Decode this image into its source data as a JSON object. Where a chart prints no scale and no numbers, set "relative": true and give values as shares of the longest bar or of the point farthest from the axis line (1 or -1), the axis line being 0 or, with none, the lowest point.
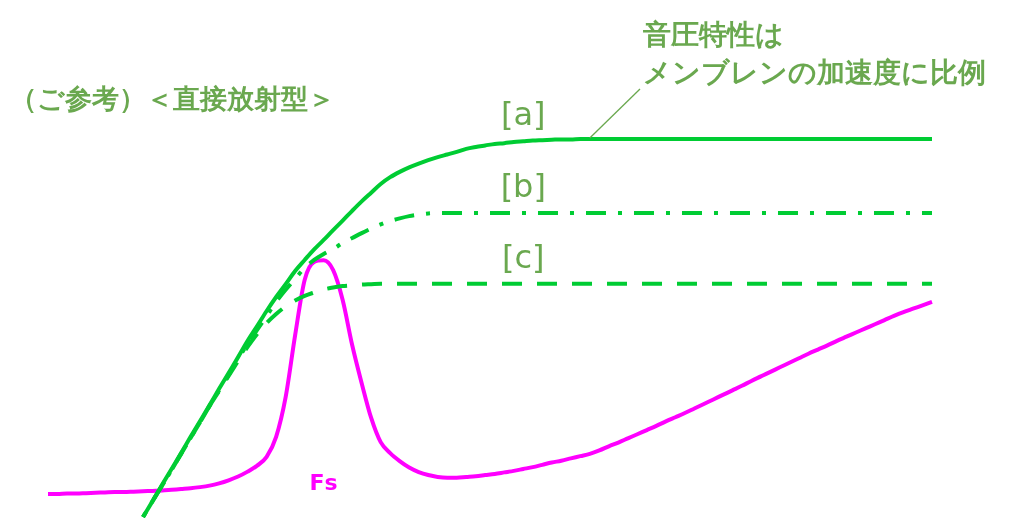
{
  "chart_data": {
    "type": "line",
    "title": "（ご参考）＜直接放射型＞",
    "annotations": [
      "音圧特性は",
      "メンブレンの加速度に比例"
    ],
    "relative": true,
    "tick_labels": false,
    "categories": [
      null,
      null,
      null,
      null,
      null,
      null,
      null,
      null,
      null,
      null,
      null,
      null,
      null,
      null,
      null,
      null,
      null,
      null,
      null,
      null,
      null,
      null,
      null,
      null,
      null,
      null,
      null,
      null,
      null,
      null,
      null,
      null,
      null,
      null,
      null,
      null,
      null,
      null,
      null,
      null,
      null,
      null,
      null,
      null,
      null,
      null,
      null,
      null,
      null,
      null,
      null,
      null,
      null,
      null,
      null,
      null,
      null,
      null,
      null,
      null,
      null,
      null,
      null,
      null,
      null,
      null,
      null,
      null,
      null,
      null,
      null,
      null,
      null,
      null,
      null,
      null,
      null,
      null,
      null,
      null,
      null,
      null,
      null,
      null,
      null,
      null,
      null,
      null,
      null,
      null,
      null,
      null,
      null,
      null
    ],
    "series": [
      {
        "name": "[a]",
        "color": "#00cc33",
        "line_style": "solid",
        "values": [
          null,
          null,
          null,
          null,
          null,
          null,
          null,
          null,
          null,
          null,
          0,
          0.042,
          0.085,
          0.127,
          0.169,
          0.212,
          0.254,
          0.296,
          0.339,
          0.381,
          0.423,
          0.466,
          0.505,
          0.545,
          0.582,
          0.616,
          0.651,
          0.68,
          0.708,
          0.733,
          0.759,
          0.784,
          0.81,
          0.835,
          0.858,
          0.881,
          0.899,
          0.913,
          0.925,
          0.935,
          0.944,
          0.952,
          0.959,
          0.966,
          0.974,
          0.979,
          0.983,
          0.987,
          0.989,
          0.992,
          0.994,
          0.996,
          0.997,
          0.998,
          0.999,
          0.999,
          1,
          1,
          1,
          1,
          1,
          1,
          1,
          1,
          1,
          1,
          1,
          1,
          1,
          1,
          1,
          1,
          1,
          1,
          1,
          1,
          1,
          1,
          1,
          1,
          1,
          1,
          1,
          1,
          1,
          1,
          1,
          1,
          1,
          1,
          1,
          1,
          1,
          1
        ]
      },
      {
        "name": "[b]",
        "color": "#00cc33",
        "line_style": "dashdot",
        "values": [
          null,
          null,
          null,
          null,
          null,
          null,
          null,
          null,
          null,
          null,
          0,
          0.042,
          0.083,
          0.124,
          0.167,
          0.209,
          0.251,
          0.294,
          0.335,
          0.376,
          0.418,
          0.458,
          0.495,
          0.532,
          0.569,
          0.601,
          0.63,
          0.659,
          0.68,
          0.696,
          0.709,
          0.725,
          0.738,
          0.751,
          0.763,
          0.774,
          0.783,
          0.79,
          0.796,
          0.8,
          0.803,
          0.804,
          0.804,
          0.804,
          0.804,
          0.804,
          0.804,
          0.804,
          0.804,
          0.804,
          0.804,
          0.804,
          0.804,
          0.804,
          0.804,
          0.804,
          0.804,
          0.804,
          0.804,
          0.804,
          0.804,
          0.804,
          0.804,
          0.804,
          0.804,
          0.804,
          0.804,
          0.804,
          0.804,
          0.804,
          0.804,
          0.804,
          0.804,
          0.804,
          0.804,
          0.804,
          0.804,
          0.804,
          0.804,
          0.804,
          0.804,
          0.804,
          0.804,
          0.804,
          0.804,
          0.804,
          0.804,
          0.804,
          0.804,
          0.804,
          0.804,
          0.804,
          0.804,
          0.804
        ]
      },
      {
        "name": "[c]",
        "color": "#00cc33",
        "line_style": "dashed",
        "values": [
          null,
          null,
          null,
          null,
          null,
          null,
          null,
          null,
          null,
          null,
          0,
          0.042,
          0.083,
          0.124,
          0.167,
          0.209,
          0.251,
          0.294,
          0.333,
          0.373,
          0.413,
          0.45,
          0.484,
          0.513,
          0.537,
          0.557,
          0.573,
          0.585,
          0.594,
          0.602,
          0.607,
          0.611,
          0.613,
          0.615,
          0.616,
          0.617,
          0.617,
          0.617,
          0.617,
          0.617,
          0.617,
          0.617,
          0.617,
          0.617,
          0.617,
          0.617,
          0.617,
          0.617,
          0.617,
          0.617,
          0.617,
          0.617,
          0.617,
          0.617,
          0.617,
          0.617,
          0.617,
          0.617,
          0.617,
          0.617,
          0.617,
          0.617,
          0.617,
          0.617,
          0.617,
          0.617,
          0.617,
          0.617,
          0.617,
          0.617,
          0.617,
          0.617,
          0.617,
          0.617,
          0.617,
          0.617,
          0.617,
          0.617,
          0.617,
          0.617,
          0.617,
          0.617,
          0.617,
          0.617,
          0.617,
          0.617,
          0.617,
          0.617,
          0.617,
          0.617,
          0.617,
          0.617,
          0.617,
          0.617
        ]
      },
      {
        "name": "Fs",
        "color": "#ff00ff",
        "line_style": "solid",
        "values": [
          0.061,
          0.061,
          0.062,
          0.062,
          0.063,
          0.064,
          0.065,
          0.066,
          0.066,
          0.067,
          0.068,
          0.069,
          0.07,
          0.072,
          0.074,
          0.076,
          0.079,
          0.083,
          0.089,
          0.097,
          0.107,
          0.12,
          0.136,
          0.159,
          0.212,
          0.317,
          0.481,
          0.627,
          0.675,
          0.679,
          0.653,
          0.574,
          0.455,
          0.354,
          0.262,
          0.198,
          0.169,
          0.148,
          0.131,
          0.119,
          0.111,
          0.106,
          0.104,
          0.104,
          0.106,
          0.108,
          0.111,
          0.114,
          0.118,
          0.122,
          0.127,
          0.132,
          0.138,
          0.144,
          0.149,
          0.155,
          0.161,
          0.167,
          0.176,
          0.187,
          0.197,
          0.208,
          0.219,
          0.23,
          0.241,
          0.253,
          0.264,
          0.275,
          0.287,
          0.299,
          0.311,
          0.323,
          0.335,
          0.347,
          0.36,
          0.372,
          0.384,
          0.396,
          0.408,
          0.42,
          0.432,
          0.443,
          0.454,
          0.466,
          0.477,
          0.488,
          0.499,
          0.51,
          0.521,
          0.532,
          0.542,
          0.551,
          0.56,
          0.569
        ]
      }
    ]
  }
}
